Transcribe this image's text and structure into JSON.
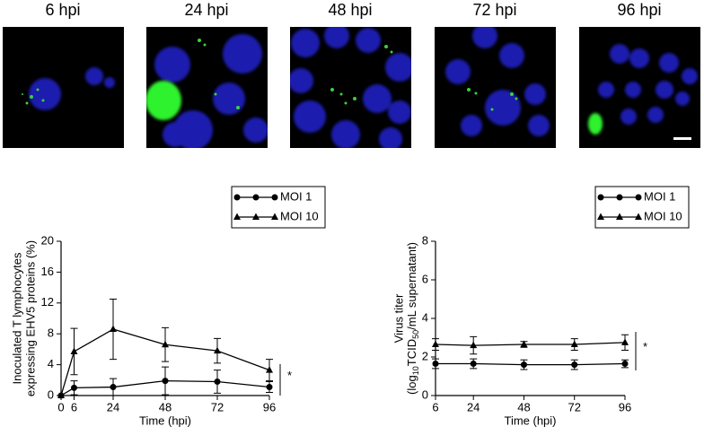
{
  "panels": [
    "6 hpi",
    "24 hpi",
    "48 hpi",
    "72 hpi",
    "96 hpi"
  ],
  "chart_data": [
    {
      "type": "line",
      "ylabel": [
        "Inoculated T lymphocytes",
        "expressing EHV5 proteins (%)"
      ],
      "xlabel": "Time (hpi)",
      "x": [
        0,
        6,
        24,
        48,
        72,
        96
      ],
      "xlim": [
        0,
        96
      ],
      "xticks": [
        0,
        6,
        24,
        48,
        72,
        96
      ],
      "ylim": [
        0,
        20
      ],
      "yticks": [
        0,
        4,
        8,
        12,
        16,
        20
      ],
      "series": [
        {
          "name": "MOI 1",
          "color": "#000000",
          "marker": "circle",
          "values": [
            0,
            1.0,
            1.1,
            1.9,
            1.8,
            1.1
          ],
          "errors": [
            0,
            0.9,
            1.1,
            1.8,
            1.5,
            0.7
          ]
        },
        {
          "name": "MOI 10",
          "color": "#000000",
          "marker": "triangle",
          "values": [
            0,
            5.7,
            8.6,
            6.6,
            5.8,
            3.3
          ],
          "errors": [
            0,
            3.0,
            3.9,
            2.2,
            1.6,
            1.4
          ]
        }
      ],
      "annotation": "*"
    },
    {
      "type": "line",
      "ylabel": {
        "line1": "Virus titer",
        "parts": [
          "(log",
          "10",
          "TCID",
          "50",
          "/mL supernatant)"
        ]
      },
      "xlabel": "Time (hpi)",
      "x": [
        6,
        24,
        48,
        72,
        96
      ],
      "xlim": [
        6,
        96
      ],
      "xticks": [
        6,
        24,
        48,
        72,
        96
      ],
      "ylim": [
        0,
        8
      ],
      "yticks": [
        0,
        2,
        4,
        6,
        8
      ],
      "series": [
        {
          "name": "MOI 1",
          "color": "#000000",
          "marker": "circle",
          "values": [
            1.65,
            1.65,
            1.6,
            1.6,
            1.65
          ],
          "errors": [
            0.25,
            0.25,
            0.25,
            0.25,
            0.2
          ]
        },
        {
          "name": "MOI 10",
          "color": "#000000",
          "marker": "triangle",
          "values": [
            2.65,
            2.6,
            2.65,
            2.65,
            2.75
          ],
          "errors": [
            0.3,
            0.45,
            0.15,
            0.3,
            0.4
          ]
        }
      ],
      "annotation": "*"
    }
  ]
}
